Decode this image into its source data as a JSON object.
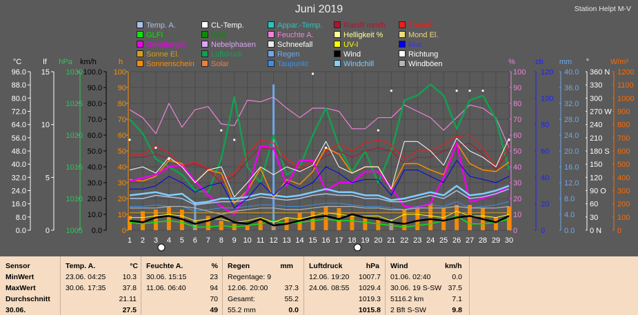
{
  "title": "Juni 2019",
  "station": "Station Helpt M-V",
  "legend": [
    {
      "label": "Temp. A.",
      "color": "#a9c4ec"
    },
    {
      "label": "CL-Temp.",
      "color": "#ffffff"
    },
    {
      "label": "Appar.-Temp.",
      "color": "#26c7c0"
    },
    {
      "label": "RainR mm/h",
      "color": "#b3122c"
    },
    {
      "label": "ThetaE",
      "color": "#ee1c1c"
    },
    {
      "label": "GLFI",
      "color": "#12e20e"
    },
    {
      "label": "WBI",
      "color": "#0b8a0b"
    },
    {
      "label": "Feuchte A.",
      "color": "#f082dc"
    },
    {
      "label": "Helligkeit %",
      "color": "#ffff99"
    },
    {
      "label": "Mond El.",
      "color": "#f0dc78"
    },
    {
      "label": "Gewittergef.",
      "color": "#ee00ee"
    },
    {
      "label": "Nebelphasen",
      "color": "#d8a8f0"
    },
    {
      "label": "Schneefall",
      "color": "#eeeeee"
    },
    {
      "label": "UV-I",
      "color": "#ffff00"
    },
    {
      "label": "klux",
      "color": "#0000ee"
    },
    {
      "label": "Sonne El.",
      "color": "#d99f18"
    },
    {
      "label": "Luftdruck",
      "color": "#12a050"
    },
    {
      "label": "Regen",
      "color": "#6fa8ec"
    },
    {
      "label": "Wind",
      "color": "#000000"
    },
    {
      "label": "Richtung",
      "color": "#ffffff"
    },
    {
      "label": "Sonnenschein",
      "color": "#ff8c00"
    },
    {
      "label": "Solar",
      "color": "#f07f3c"
    },
    {
      "label": "Taupunkt",
      "color": "#3d8fe6"
    },
    {
      "label": "Windchill",
      "color": "#7fcfff"
    },
    {
      "label": "Windböen",
      "color": "#b4b4b4"
    }
  ],
  "axes": {
    "c": {
      "unit": "°C",
      "ticks": [
        "96.0",
        "88.0",
        "80.0",
        "72.0",
        "64.0",
        "56.0",
        "48.0",
        "40.0",
        "32.0",
        "24.0",
        "16.0",
        "8.0",
        "0.0"
      ],
      "color": "#ffffff"
    },
    "lf": {
      "unit": "lf",
      "ticks": [
        "15",
        "10",
        "5",
        "0"
      ],
      "color": "#ffffff"
    },
    "hpa": {
      "unit": "hPa",
      "ticks": [
        "1030",
        "1025",
        "1020",
        "1015",
        "1010",
        "1005"
      ],
      "color": "#2ec65a"
    },
    "kmh": {
      "unit": "km/h",
      "ticks": [
        "100.0",
        "90.0",
        "80.0",
        "70.0",
        "60.0",
        "50.0",
        "40.0",
        "30.0",
        "20.0",
        "10.0",
        "0.0"
      ],
      "color": "#000000"
    },
    "h": {
      "unit": "h",
      "ticks": [
        "100",
        "90",
        "80",
        "70",
        "60",
        "50",
        "40",
        "30",
        "20",
        "10",
        "0"
      ],
      "color": "#ff8c00"
    },
    "pct": {
      "unit": "%",
      "ticks": [
        "100",
        "90",
        "80",
        "70",
        "60",
        "50",
        "40",
        "30",
        "20",
        "10",
        "0"
      ],
      "color": "#f082dc"
    },
    "cb": {
      "unit": "cb",
      "ticks": [
        "120",
        "100",
        "80",
        "60",
        "40",
        "20",
        "0"
      ],
      "color": "#2020ff"
    },
    "mm": {
      "unit": "mm",
      "ticks": [
        "40.0",
        "36.0",
        "32.0",
        "28.0",
        "24.0",
        "20.0",
        "16.0",
        "12.0",
        "8.0",
        "4.0",
        "0.0"
      ],
      "color": "#6fa8ec"
    },
    "deg": {
      "unit": "°",
      "ticks": [
        "360 N",
        "330",
        "300",
        "270 W",
        "240",
        "210",
        "180 S",
        "150",
        "120",
        "90  O",
        "60",
        "30",
        "0   N"
      ],
      "color": "#ffffff"
    },
    "wm2": {
      "unit": "W/m²",
      "ticks": [
        "1200",
        "1100",
        "1000",
        "900",
        "800",
        "700",
        "600",
        "500",
        "400",
        "300",
        "200",
        "100",
        "0"
      ],
      "color": "#ff6a00"
    }
  },
  "chart_data": {
    "type": "line",
    "title": "Juni 2019",
    "x": [
      1,
      2,
      3,
      4,
      5,
      6,
      7,
      8,
      9,
      10,
      11,
      12,
      13,
      14,
      15,
      16,
      17,
      18,
      19,
      20,
      21,
      22,
      23,
      24,
      25,
      26,
      27,
      28,
      29,
      30
    ],
    "ylim": [
      0,
      100
    ],
    "series": [
      {
        "name": "Feuchte A.",
        "color": "#f082dc",
        "axis": "pct",
        "width": 1.2,
        "values": [
          76,
          71,
          61,
          80,
          65,
          76,
          78,
          67,
          66,
          82,
          81,
          84,
          77,
          71,
          77,
          77,
          75,
          64,
          64,
          71,
          71,
          79,
          75,
          71,
          63,
          71,
          79,
          77,
          71,
          52
        ]
      },
      {
        "name": "Luftdruck",
        "color": "#12a050",
        "axis": "pct",
        "width": 2.5,
        "values": [
          70,
          61,
          45,
          40,
          35,
          25,
          24,
          45,
          84,
          40,
          30,
          60,
          35,
          40,
          60,
          77,
          53,
          37,
          50,
          30,
          50,
          82,
          85,
          92,
          85,
          64,
          82,
          85,
          70,
          38
        ]
      },
      {
        "name": "ThetaE",
        "color": "#ee1c1c",
        "axis": "pct",
        "width": 1.2,
        "values": [
          48,
          48,
          53,
          49,
          41,
          43,
          39,
          32,
          36,
          48,
          57,
          55,
          45,
          40,
          43,
          50,
          54,
          50,
          55,
          57,
          54,
          45,
          50,
          50,
          54,
          59,
          60,
          52,
          40,
          54
        ]
      },
      {
        "name": "RainR mm/h",
        "color": "#b3122c",
        "axis": "pct",
        "width": 1,
        "values": [
          46,
          46,
          48,
          45,
          40,
          42,
          38,
          30,
          34,
          44,
          52,
          51,
          42,
          38,
          41,
          47,
          50,
          46,
          50,
          52,
          50,
          42,
          46,
          46,
          50,
          53,
          55,
          48,
          38,
          50
        ]
      },
      {
        "name": "Sonnenschein",
        "color": "#ff8c00",
        "axis": "pct",
        "width": 1.5,
        "values": [
          32,
          31,
          34,
          44,
          42,
          30,
          38,
          36,
          17,
          25,
          39,
          20,
          32,
          29,
          37,
          52,
          48,
          36,
          40,
          40,
          26,
          42,
          42,
          38,
          35,
          55,
          42,
          38,
          37,
          43
        ]
      },
      {
        "name": "Gewittergef.",
        "color": "#ee00ee",
        "axis": "pct",
        "width": 2.5,
        "values": [
          31,
          33,
          35,
          40,
          41,
          31,
          22,
          15,
          10,
          25,
          53,
          52,
          28,
          44,
          44,
          25,
          30,
          30,
          37,
          37,
          27,
          15,
          14,
          17,
          33,
          55,
          18,
          20,
          23,
          28
        ]
      },
      {
        "name": "CL-Temp.",
        "color": "#ffffff",
        "axis": "pct",
        "width": 1,
        "values": [
          38,
          40,
          36,
          46,
          40,
          30,
          38,
          40,
          21,
          30,
          40,
          35,
          40,
          37,
          41,
          56,
          40,
          36,
          40,
          40,
          26,
          56,
          56,
          50,
          41,
          58,
          50,
          46,
          40,
          58
        ]
      },
      {
        "name": "Windchill",
        "color": "#7fcfff",
        "axis": "pct",
        "width": 2.5,
        "values": [
          22,
          23,
          24,
          22,
          23,
          17,
          18,
          20,
          20,
          21,
          23,
          22,
          21,
          22,
          24,
          26,
          24,
          24,
          22,
          22,
          19,
          20,
          22,
          24,
          22,
          28,
          22,
          23,
          25,
          28
        ]
      },
      {
        "name": "Temp. A.",
        "color": "#a9c4ec",
        "axis": "pct",
        "width": 1.5,
        "values": [
          20,
          20,
          22,
          21,
          20,
          16,
          17,
          18,
          18,
          19,
          21,
          20,
          19,
          20,
          22,
          23,
          22,
          22,
          20,
          20,
          18,
          18,
          20,
          22,
          20,
          25,
          20,
          21,
          23,
          26
        ]
      },
      {
        "name": "Taupunkt",
        "color": "#3d8fe6",
        "axis": "pct",
        "width": 1,
        "values": [
          15,
          15,
          16,
          15,
          15,
          12,
          13,
          14,
          14,
          15,
          16,
          16,
          15,
          15,
          16,
          17,
          17,
          16,
          15,
          15,
          14,
          13,
          15,
          16,
          15,
          18,
          14,
          15,
          16,
          18
        ]
      },
      {
        "name": "Windböen",
        "color": "#b4b4b4",
        "axis": "pct",
        "width": 1.2,
        "values": [
          14,
          14,
          14,
          15,
          15,
          14,
          12,
          10,
          12,
          13,
          14,
          14,
          13,
          13,
          14,
          15,
          15,
          15,
          14,
          14,
          13,
          13,
          14,
          14,
          14,
          15,
          14,
          14,
          14,
          15
        ]
      },
      {
        "name": "klux",
        "color": "#0000ee",
        "axis": "pct",
        "width": 1,
        "values": [
          26,
          26,
          28,
          34,
          30,
          24,
          28,
          30,
          14,
          20,
          30,
          22,
          30,
          26,
          30,
          40,
          36,
          30,
          32,
          32,
          22,
          38,
          38,
          34,
          30,
          44,
          34,
          32,
          30,
          34
        ]
      },
      {
        "name": "GLFI",
        "color": "#12e20e",
        "axis": "pct",
        "width": 1.5,
        "values": [
          5,
          4,
          5,
          6,
          5,
          2,
          2,
          3,
          2,
          3,
          4,
          6,
          4,
          5,
          6,
          7,
          6,
          6,
          5,
          4,
          3,
          2,
          3,
          4,
          6,
          9,
          4,
          4,
          5,
          7
        ]
      },
      {
        "name": "UV-I",
        "color": "#ffff00",
        "axis": "pct",
        "width": 1,
        "values": [
          8,
          8,
          9,
          10,
          9,
          6,
          7,
          7,
          5,
          6,
          8,
          5,
          8,
          7,
          9,
          11,
          10,
          9,
          9,
          9,
          6,
          10,
          10,
          9,
          8,
          12,
          9,
          9,
          8,
          10
        ]
      },
      {
        "name": "Wind",
        "color": "#000000",
        "axis": "pct",
        "width": 2.5,
        "values": [
          6,
          5,
          8,
          9,
          7,
          4,
          6,
          9,
          5,
          4,
          7,
          3,
          4,
          6,
          8,
          9,
          7,
          10,
          8,
          7,
          5,
          4,
          6,
          7,
          6,
          8,
          9,
          7,
          5,
          9
        ]
      },
      {
        "name": "Sonne El.",
        "color": "#d99f18",
        "axis": "pct",
        "width": 1,
        "values": [
          11,
          11,
          11,
          11,
          11,
          11,
          11,
          11,
          11,
          11,
          11,
          11,
          11,
          11,
          11,
          11,
          11,
          11,
          11,
          11,
          11,
          11,
          11,
          11,
          11,
          11,
          11,
          11,
          11,
          11
        ]
      }
    ],
    "bars": {
      "name": "Sonnenschein",
      "color": "#ff8c00",
      "axis": "pct",
      "values": [
        9,
        12,
        13,
        15,
        13,
        6,
        9,
        6,
        4,
        3,
        7,
        3,
        8,
        11,
        12,
        15,
        14,
        9,
        8,
        7,
        5,
        13,
        15,
        17,
        14,
        16,
        16,
        14,
        8,
        15
      ]
    },
    "rain_bars": {
      "name": "Regen",
      "color": "#6fa8ec",
      "axis": "pct",
      "values": [
        0,
        0,
        0,
        0,
        0,
        18,
        0,
        0,
        0,
        0,
        0,
        92,
        0,
        0,
        0,
        0,
        0,
        0,
        0,
        0,
        7,
        0,
        0,
        0,
        0,
        0,
        0,
        0,
        0,
        0
      ]
    },
    "direction_points": {
      "name": "Richtung",
      "color": "#ffffff",
      "values": [
        57,
        0,
        52,
        45,
        0,
        0,
        0,
        63,
        57,
        0,
        0,
        0,
        0,
        0,
        100,
        52,
        0,
        0,
        0,
        63,
        88,
        0,
        0,
        0,
        0,
        88,
        88,
        88,
        0,
        57
      ]
    },
    "moon_markers": [
      3,
      18
    ]
  },
  "table": {
    "sensor": {
      "header": "Sensor",
      "rows": [
        "MinWert",
        "MaxWert",
        "Durchschnitt",
        "30.06."
      ]
    },
    "temp": {
      "header": "Temp. A.",
      "unit": "°C",
      "rows": [
        [
          "23.06.  04:25",
          "10.3"
        ],
        [
          "30.06.  17:35",
          "37.8"
        ],
        [
          "",
          "21.11"
        ],
        [
          "",
          "27.5"
        ]
      ]
    },
    "humid": {
      "header": "Feuchte A.",
      "unit": "%",
      "rows": [
        [
          "30.06.  15:15",
          "23"
        ],
        [
          "11.06.  06:40",
          "94"
        ],
        [
          "",
          "70"
        ],
        [
          "",
          "49"
        ]
      ]
    },
    "rain": {
      "header": "Regen",
      "unit": "mm",
      "rows": [
        [
          "Regentage: 9",
          ""
        ],
        [
          "12.06.  20:00",
          "37.3"
        ],
        [
          "Gesamt:",
          "55.2"
        ],
        [
          "  55.2 mm",
          "0.0"
        ]
      ]
    },
    "pressure": {
      "header": "Luftdruck",
      "unit": "hPa",
      "rows": [
        [
          "12.06.  19:20",
          "1007.7"
        ],
        [
          "24.06.  08:55",
          "1029.4"
        ],
        [
          "",
          "1019.3"
        ],
        [
          "",
          "1015.8"
        ]
      ]
    },
    "wind": {
      "header": "Wind",
      "unit": "km/h",
      "rows": [
        [
          "01.06.  02:40",
          "0.0"
        ],
        [
          "30.06.  19 S-SW",
          "37.5"
        ],
        [
          "5116.2 km",
          "7.1"
        ],
        [
          "  2 Bft S-SW",
          "9.8"
        ]
      ]
    }
  }
}
